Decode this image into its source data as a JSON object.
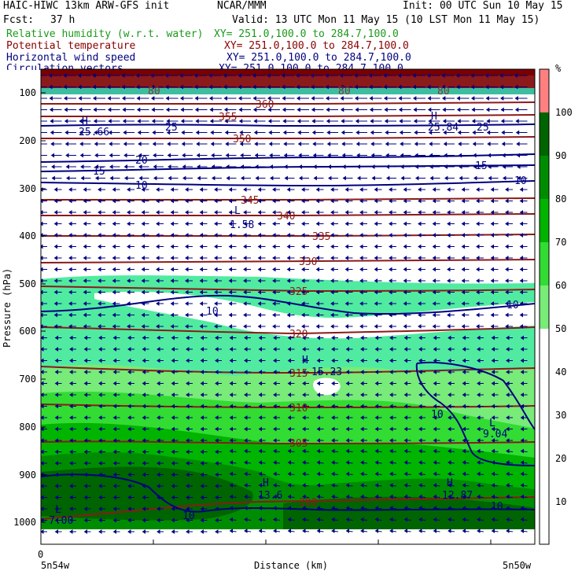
{
  "header": {
    "model": "HAIC-HIWC 13km ARW-GFS init",
    "org": "NCAR/MMM",
    "init": "Init: 00 UTC Sun 10 May 15",
    "fcst_label": "Fcst:",
    "fcst_value": "37 h",
    "valid": "Valid: 13 UTC Mon 11 May 15 (10 LST Mon 11 May 15)"
  },
  "fields": [
    {
      "name": "Relative humidity (w.r.t. water)",
      "xy": "XY= 251.0,100.0 to 284.7,100.0",
      "color": "#1a9a1a"
    },
    {
      "name": "Potential temperature",
      "xy": "XY= 251.0,100.0 to 284.7,100.0",
      "color": "#8b0000"
    },
    {
      "name": "Horizontal wind speed",
      "xy": "XY= 251.0,100.0 to 284.7,100.0",
      "color": "#000080"
    },
    {
      "name": "Circulation vectors",
      "xy": "XY= 251.0,100.0 to 284.7,100.0",
      "color": "#000080"
    }
  ],
  "axes": {
    "ylabel": "Pressure (hPa)",
    "xlabel": "Distance (km)",
    "y_ticks": [
      "100",
      "200",
      "300",
      "400",
      "500",
      "600",
      "700",
      "800",
      "900",
      "1000"
    ],
    "x_start_value": "0",
    "x_left_label": "5n54w",
    "x_right_label": "5n50w"
  },
  "colorbar": {
    "unit": "%",
    "labels": [
      "100",
      "90",
      "80",
      "70",
      "60",
      "50",
      "40",
      "30",
      "20",
      "10"
    ],
    "colors": [
      "#ff8080",
      "#006400",
      "#008c00",
      "#00b400",
      "#32dc32",
      "#78eb78",
      "#50eba0"
    ]
  },
  "chart_data": {
    "type": "heatmap",
    "title": "Relative humidity (w.r.t. water)",
    "xlabel": "Distance (km)",
    "ylabel": "Pressure (hPa)",
    "ylim": [
      1000,
      50
    ],
    "y_scale": "log",
    "colorbar_range": [
      0,
      100
    ],
    "theta_contours": [
      {
        "value": 300,
        "label": "300"
      },
      {
        "value": 305,
        "label": "305"
      },
      {
        "value": 310,
        "label": "310"
      },
      {
        "value": 315,
        "label": "315"
      },
      {
        "value": 320,
        "label": "320"
      },
      {
        "value": 325,
        "label": "325"
      },
      {
        "value": 330,
        "label": "330"
      },
      {
        "value": 335,
        "label": "335"
      },
      {
        "value": 340,
        "label": "340"
      },
      {
        "value": 345,
        "label": "345"
      },
      {
        "value": 350,
        "label": "350"
      },
      {
        "value": 355,
        "label": "355"
      },
      {
        "value": 360,
        "label": "360"
      }
    ],
    "wind_contour_labels": [
      "10",
      "10",
      "10",
      "10",
      "10",
      "10",
      "15",
      "15",
      "20",
      "25",
      "25",
      "10"
    ],
    "extrema_labels": [
      {
        "mark": "H",
        "value": "25.66"
      },
      {
        "mark": "H",
        "value": "25.84"
      },
      {
        "mark": "L",
        "value": "1.58"
      },
      {
        "mark": "H",
        "value": "15.23"
      },
      {
        "mark": "L",
        "value": "9.04"
      },
      {
        "mark": "H",
        "value": "13.6"
      },
      {
        "mark": "H",
        "value": "12.87"
      },
      {
        "mark": "L",
        "value": "7.00"
      },
      {
        "mark": "",
        "value": "10"
      }
    ],
    "contour_labels_upper": [
      "80",
      "80",
      "80"
    ]
  }
}
